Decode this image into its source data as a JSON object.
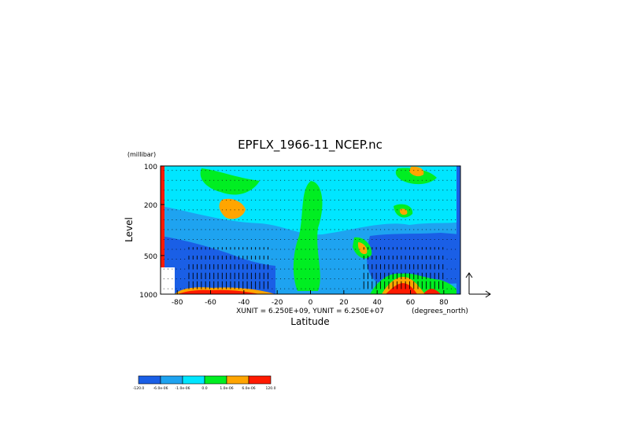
{
  "chart_data": {
    "type": "heatmap",
    "title": "EPFLX_1966-11_NCEP.nc",
    "xlabel": "Latitude",
    "ylabel": "Level",
    "y_unit_label": "(millibar)",
    "x_unit_label": "(degrees_north)",
    "vector_units": "XUNIT = 6.250E+09, YUNIT = 6.250E+07",
    "xlim": [
      -90,
      90
    ],
    "ylim": [
      1000,
      100
    ],
    "y_scale": "log",
    "x_ticks": [
      "-80",
      "-60",
      "-40",
      "-20",
      "0",
      "20",
      "40",
      "60",
      "80"
    ],
    "y_ticks": [
      "100",
      "200",
      "500",
      "1000"
    ],
    "grid": false,
    "colorbar": {
      "colors": [
        "#1a5fe6",
        "#1ea3f0",
        "#00e6ff",
        "#00ee22",
        "#ffa500",
        "#ff1a00"
      ],
      "labels": [
        "-120.0",
        "-6.0e-06",
        "-1.0e-06",
        "0.0",
        "1.0e-06",
        "6.0e-06",
        "120.0"
      ]
    }
  }
}
